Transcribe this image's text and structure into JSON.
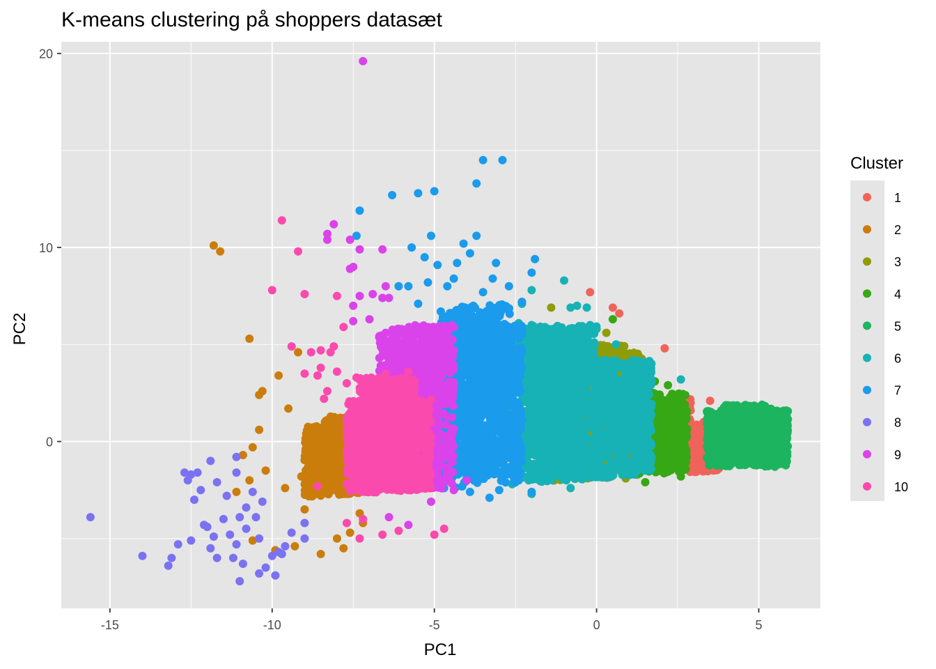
{
  "chart_data": {
    "type": "scatter",
    "title": "K-means clustering på shoppers datasæt",
    "xlabel": "PC1",
    "ylabel": "PC2",
    "xlim": [
      -16.5,
      6.9
    ],
    "ylim": [
      -8.6,
      20.6
    ],
    "x_ticks": [
      -15,
      -10,
      -5,
      0,
      5
    ],
    "y_ticks": [
      0,
      10,
      20
    ],
    "x_tick_labels": [
      "-15",
      "-10",
      "-5",
      "0",
      "5"
    ],
    "y_tick_labels": [
      "0",
      "10",
      "20"
    ],
    "grid": true,
    "legend": {
      "title": "Cluster",
      "position": "right",
      "entries": [
        "1",
        "2",
        "3",
        "4",
        "5",
        "6",
        "7",
        "8",
        "9",
        "10"
      ]
    },
    "colors": {
      "panel_background": "#e5e5e5",
      "grid": "#ffffff",
      "1": "#f8766d",
      "2": "#d39200",
      "3": "#93aa00",
      "4": "#00ba38",
      "5": "#00c19f",
      "6": "#00b9e3",
      "7": "#619cff",
      "8": "#db72fb",
      "9": "#ff61c3",
      "10": "#ff61c3"
    },
    "series": [
      {
        "name": "1",
        "color": "#f0635a",
        "points": [
          [
            -0.2,
            7.7
          ],
          [
            0.5,
            6.9
          ],
          [
            0.7,
            6.6
          ],
          [
            2.1,
            4.8
          ],
          [
            3.5,
            2.1
          ],
          [
            3.3,
            1.0
          ],
          [
            3.0,
            0.3
          ],
          [
            2.8,
            -0.6
          ],
          [
            3.2,
            -1.2
          ],
          [
            3.6,
            -1.5
          ],
          [
            2.6,
            1.2
          ],
          [
            2.9,
            2.0
          ],
          [
            3.1,
            -0.3
          ],
          [
            3.4,
            0.8
          ]
        ],
        "core": [
          [
            2.7,
            0.9,
            3.8,
            -1.6
          ],
          [
            2.55,
            2.3,
            2.9,
            -1.4
          ]
        ]
      },
      {
        "name": "2",
        "color": "#cb7d0c",
        "points": [
          [
            -11.8,
            10.1
          ],
          [
            -11.6,
            9.8
          ],
          [
            -10.7,
            5.3
          ],
          [
            -9.8,
            3.4
          ],
          [
            -9.2,
            4.6
          ],
          [
            -10.3,
            2.6
          ],
          [
            -10.4,
            2.4
          ],
          [
            -9.5,
            1.7
          ],
          [
            -10.4,
            0.6
          ],
          [
            -10.6,
            -0.3
          ],
          [
            -10.9,
            -0.7
          ],
          [
            -10.2,
            -1.5
          ],
          [
            -10.7,
            -2.0
          ],
          [
            -11.1,
            -2.6
          ],
          [
            -10.6,
            -5.1
          ],
          [
            -9.9,
            -5.6
          ],
          [
            -9.3,
            -5.4
          ],
          [
            -8.5,
            -5.8
          ],
          [
            -7.8,
            -5.5
          ],
          [
            -7.2,
            -4.2
          ],
          [
            -9.0,
            -3.5
          ],
          [
            -8.9,
            -0.8
          ],
          [
            -8.5,
            0.6
          ],
          [
            -9.1,
            -1.8
          ],
          [
            -9.6,
            -2.4
          ],
          [
            -8.0,
            -5.0
          ],
          [
            -7.3,
            -3.7
          ],
          [
            -7.6,
            -4.7
          ]
        ],
        "core": [
          [
            -9.0,
            0.8,
            -6.8,
            -4.6
          ],
          [
            -8.4,
            1.3,
            -7.3,
            -5.2
          ]
        ]
      },
      {
        "name": "3",
        "color": "#8f9c08",
        "points": [
          [
            -1.4,
            6.9
          ],
          [
            -0.6,
            5.2
          ],
          [
            -0.5,
            4.6
          ],
          [
            0.3,
            5.6
          ],
          [
            1.0,
            3.9
          ],
          [
            -1.0,
            5.6
          ],
          [
            -1.2,
            4.7
          ],
          [
            -0.8,
            3.9
          ],
          [
            0.8,
            2.8
          ],
          [
            1.2,
            1.0
          ],
          [
            1.4,
            -0.6
          ],
          [
            0.2,
            -1.8
          ],
          [
            -0.8,
            -1.7
          ],
          [
            0.9,
            -1.9
          ]
        ],
        "core": [
          [
            -1.4,
            4.6,
            1.4,
            -2.2
          ],
          [
            -0.9,
            5.0,
            0.9,
            -1.7
          ]
        ]
      },
      {
        "name": "4",
        "color": "#36a815",
        "points": [
          [
            0.5,
            6.3
          ],
          [
            1.5,
            3.9
          ],
          [
            1.8,
            3.1
          ],
          [
            2.2,
            2.9
          ],
          [
            2.6,
            2.0
          ],
          [
            1.2,
            2.6
          ],
          [
            1.9,
            1.9
          ],
          [
            2.3,
            -0.9
          ],
          [
            2.1,
            -1.4
          ],
          [
            1.5,
            -2.1
          ],
          [
            2.6,
            -1.8
          ],
          [
            2.2,
            -0.1
          ]
        ],
        "core": [
          [
            1.3,
            2.5,
            2.8,
            -1.9
          ]
        ]
      },
      {
        "name": "5",
        "color": "#1cb45e",
        "points": [
          [
            3.6,
            0.9
          ],
          [
            5.7,
            0.2
          ],
          [
            5.8,
            0.0
          ],
          [
            4.7,
            1.7
          ],
          [
            5.1,
            1.9
          ],
          [
            3.7,
            -0.9
          ],
          [
            4.2,
            -0.6
          ],
          [
            5.5,
            -0.3
          ]
        ],
        "core": [
          [
            3.4,
            1.6,
            5.9,
            -1.3
          ],
          [
            3.9,
            1.9,
            5.4,
            -0.8
          ]
        ]
      },
      {
        "name": "6",
        "color": "#17b2b5",
        "points": [
          [
            -2.4,
            6.1
          ],
          [
            -2.0,
            6.0
          ],
          [
            -1.0,
            8.3
          ],
          [
            -0.3,
            6.9
          ],
          [
            -0.8,
            6.9
          ],
          [
            -0.6,
            7.0
          ],
          [
            0.0,
            5.8
          ],
          [
            -0.2,
            6.0
          ],
          [
            -0.3,
            4.6
          ],
          [
            -2.0,
            7.8
          ],
          [
            -2.3,
            7.1
          ],
          [
            0.6,
            5.0
          ],
          [
            1.7,
            3.1
          ],
          [
            2.6,
            3.2
          ],
          [
            -1.6,
            -1.2
          ],
          [
            -2.6,
            -2.2
          ],
          [
            -2.0,
            -2.7
          ],
          [
            -0.8,
            -2.4
          ]
        ],
        "core": [
          [
            -2.6,
            6.0,
            0.0,
            -2.6
          ],
          [
            -0.1,
            4.2,
            1.7,
            -2.3
          ],
          [
            -2.2,
            5.9,
            -0.3,
            -2.2
          ]
        ]
      },
      {
        "name": "7",
        "color": "#1a9bec",
        "points": [
          [
            -2.9,
            14.5
          ],
          [
            -3.5,
            14.5
          ],
          [
            -3.7,
            13.3
          ],
          [
            -5.0,
            12.9
          ],
          [
            -5.5,
            12.8
          ],
          [
            -6.3,
            12.7
          ],
          [
            -7.3,
            11.9
          ],
          [
            -7.4,
            10.6
          ],
          [
            -3.7,
            10.6
          ],
          [
            -5.1,
            10.6
          ],
          [
            -4.1,
            10.2
          ],
          [
            -5.7,
            10.0
          ],
          [
            -5.3,
            9.5
          ],
          [
            -3.9,
            9.7
          ],
          [
            -3.1,
            9.2
          ],
          [
            -4.3,
            9.2
          ],
          [
            -4.9,
            9.1
          ],
          [
            -1.9,
            9.4
          ],
          [
            -2.0,
            8.7
          ],
          [
            -3.2,
            8.4
          ],
          [
            -5.2,
            8.2
          ],
          [
            -4.4,
            8.4
          ],
          [
            -2.7,
            8.0
          ],
          [
            -3.5,
            7.7
          ],
          [
            -5.8,
            8.0
          ],
          [
            -4.6,
            8.0
          ],
          [
            -6.1,
            8.0
          ],
          [
            -4.8,
            6.7
          ],
          [
            -3.8,
            7.0
          ],
          [
            -2.3,
            7.2
          ],
          [
            -3.1,
            6.6
          ],
          [
            -4.1,
            6.7
          ],
          [
            -5.5,
            7.1
          ],
          [
            -3.9,
            -2.6
          ],
          [
            -3.0,
            -2.5
          ],
          [
            -2.0,
            -2.6
          ],
          [
            -3.3,
            -2.9
          ],
          [
            -2.4,
            -2.0
          ],
          [
            -4.7,
            -2.4
          ]
        ],
        "core": [
          [
            -5.2,
            6.0,
            -2.3,
            -2.8
          ],
          [
            -4.8,
            7.1,
            -2.6,
            -1.9
          ]
        ]
      },
      {
        "name": "8",
        "color": "#7b72f1",
        "points": [
          [
            -15.6,
            -3.9
          ],
          [
            -14.0,
            -5.9
          ],
          [
            -13.2,
            -6.4
          ],
          [
            -13.1,
            -6.0
          ],
          [
            -12.5,
            -5.1
          ],
          [
            -12.1,
            -4.3
          ],
          [
            -11.8,
            -4.9
          ],
          [
            -11.5,
            -4.0
          ],
          [
            -11.9,
            -5.5
          ],
          [
            -11.7,
            -6.0
          ],
          [
            -11.1,
            -5.3
          ],
          [
            -11.2,
            -6.0
          ],
          [
            -10.9,
            -6.3
          ],
          [
            -11.0,
            -7.2
          ],
          [
            -10.4,
            -6.8
          ],
          [
            -10.2,
            -6.5
          ],
          [
            -9.9,
            -6.9
          ],
          [
            -10.0,
            -5.9
          ],
          [
            -9.6,
            -5.4
          ],
          [
            -9.7,
            -5.8
          ],
          [
            -10.4,
            -5.0
          ],
          [
            -10.8,
            -4.5
          ],
          [
            -10.5,
            -3.9
          ],
          [
            -10.8,
            -3.4
          ],
          [
            -11.4,
            -2.8
          ],
          [
            -11.7,
            -2.1
          ],
          [
            -12.3,
            -1.6
          ],
          [
            -12.5,
            -1.7
          ],
          [
            -12.6,
            -2.0
          ],
          [
            -12.2,
            -2.5
          ],
          [
            -11.1,
            -1.6
          ],
          [
            -11.9,
            -1.0
          ],
          [
            -11.1,
            -0.8
          ],
          [
            -12.7,
            -1.6
          ],
          [
            -12.4,
            -3.0
          ],
          [
            -11.0,
            -3.9
          ],
          [
            -10.3,
            -3.1
          ],
          [
            -10.6,
            -2.6
          ],
          [
            -9.4,
            -4.7
          ],
          [
            -9.0,
            -4.2
          ],
          [
            -9.0,
            -5.0
          ],
          [
            -9.8,
            -5.7
          ],
          [
            -11.3,
            -4.8
          ],
          [
            -12.0,
            -4.4
          ],
          [
            -12.9,
            -5.3
          ]
        ],
        "core": []
      },
      {
        "name": "9",
        "color": "#db43ea",
        "points": [
          [
            -7.2,
            19.6
          ],
          [
            -8.1,
            11.2
          ],
          [
            -8.3,
            10.7
          ],
          [
            -8.3,
            10.4
          ],
          [
            -7.6,
            10.4
          ],
          [
            -7.3,
            9.9
          ],
          [
            -7.5,
            9.0
          ],
          [
            -7.6,
            8.9
          ],
          [
            -6.6,
            9.9
          ],
          [
            -6.5,
            8.0
          ],
          [
            -7.3,
            7.5
          ],
          [
            -6.9,
            7.6
          ],
          [
            -6.6,
            7.4
          ],
          [
            -6.4,
            7.4
          ],
          [
            -7.5,
            7.0
          ],
          [
            -7.0,
            6.3
          ],
          [
            -7.5,
            6.2
          ],
          [
            -6.7,
            5.4
          ],
          [
            -6.5,
            5.6
          ],
          [
            -5.3,
            5.9
          ],
          [
            -6.1,
            -2.5
          ],
          [
            -5.1,
            -3.1
          ],
          [
            -4.4,
            -2.5
          ],
          [
            -4.0,
            -2.0
          ],
          [
            -5.8,
            -4.3
          ],
          [
            -6.4,
            -3.9
          ]
        ],
        "core": [
          [
            -6.7,
            6.0,
            -4.4,
            -4.0
          ],
          [
            -6.3,
            4.9,
            -4.8,
            -3.4
          ]
        ]
      },
      {
        "name": "10",
        "color": "#fb4aad",
        "points": [
          [
            -9.7,
            11.4
          ],
          [
            -9.2,
            9.8
          ],
          [
            -10.0,
            7.8
          ],
          [
            -9.0,
            7.6
          ],
          [
            -8.0,
            7.5
          ],
          [
            -7.8,
            5.9
          ],
          [
            -8.1,
            4.9
          ],
          [
            -8.2,
            4.6
          ],
          [
            -8.5,
            4.7
          ],
          [
            -8.8,
            4.6
          ],
          [
            -9.4,
            4.9
          ],
          [
            -8.5,
            3.8
          ],
          [
            -8.6,
            3.4
          ],
          [
            -8.0,
            3.6
          ],
          [
            -7.7,
            3.0
          ],
          [
            -9.0,
            3.5
          ],
          [
            -8.3,
            2.6
          ],
          [
            -7.4,
            3.3
          ],
          [
            -8.4,
            2.2
          ],
          [
            -7.2,
            2.1
          ],
          [
            -6.5,
            3.5
          ],
          [
            -5.8,
            3.6
          ],
          [
            -6.1,
            -4.6
          ],
          [
            -6.6,
            -4.8
          ],
          [
            -7.3,
            -5.0
          ],
          [
            -5.0,
            -4.8
          ],
          [
            -4.7,
            -4.5
          ],
          [
            -7.7,
            -4.2
          ],
          [
            -7.2,
            -4.0
          ],
          [
            -8.6,
            -2.3
          ]
        ],
        "core": [
          [
            -7.7,
            2.2,
            -5.1,
            -4.5
          ],
          [
            -7.3,
            3.3,
            -5.6,
            -3.9
          ]
        ]
      }
    ]
  }
}
